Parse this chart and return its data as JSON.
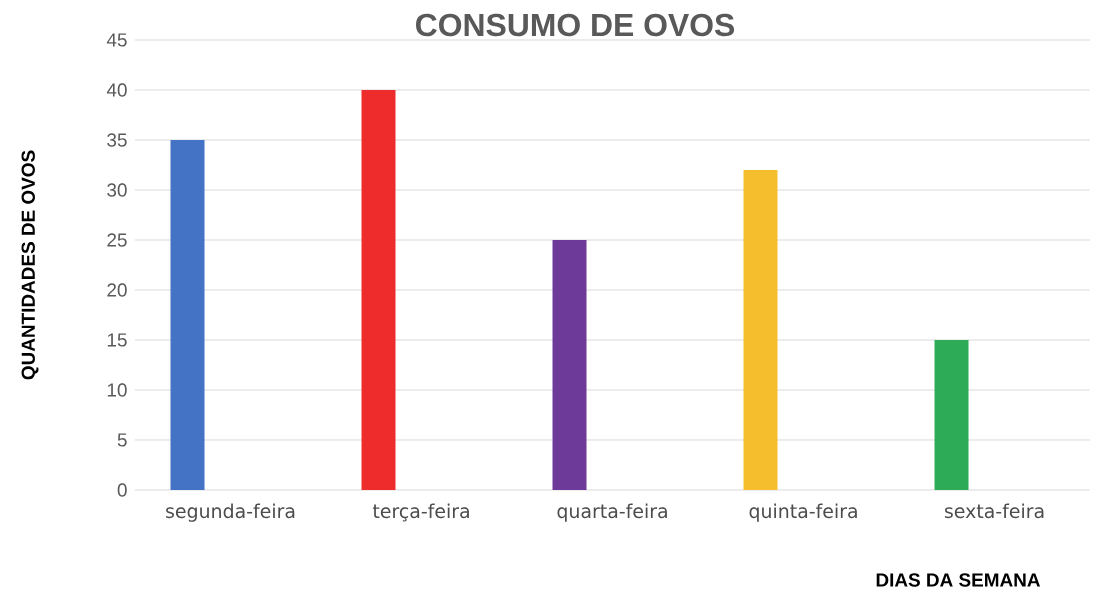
{
  "chart_data": {
    "type": "bar",
    "title": "CONSUMO DE OVOS",
    "xlabel": "DIAS DA SEMANA",
    "ylabel": "QUANTIDADES DE OVOS",
    "categories": [
      "segunda-feira",
      "terça-feira",
      "quarta-feira",
      "quinta-feira",
      "sexta-feira"
    ],
    "values": [
      35,
      40,
      25,
      32,
      15
    ],
    "colors": [
      "#4472c4",
      "#ee2c2c",
      "#6e3a9a",
      "#f4be2c",
      "#2eab56"
    ],
    "ylim": [
      0,
      45
    ],
    "yticks": [
      0,
      5,
      10,
      15,
      20,
      25,
      30,
      35,
      40,
      45
    ],
    "grid": "y"
  }
}
